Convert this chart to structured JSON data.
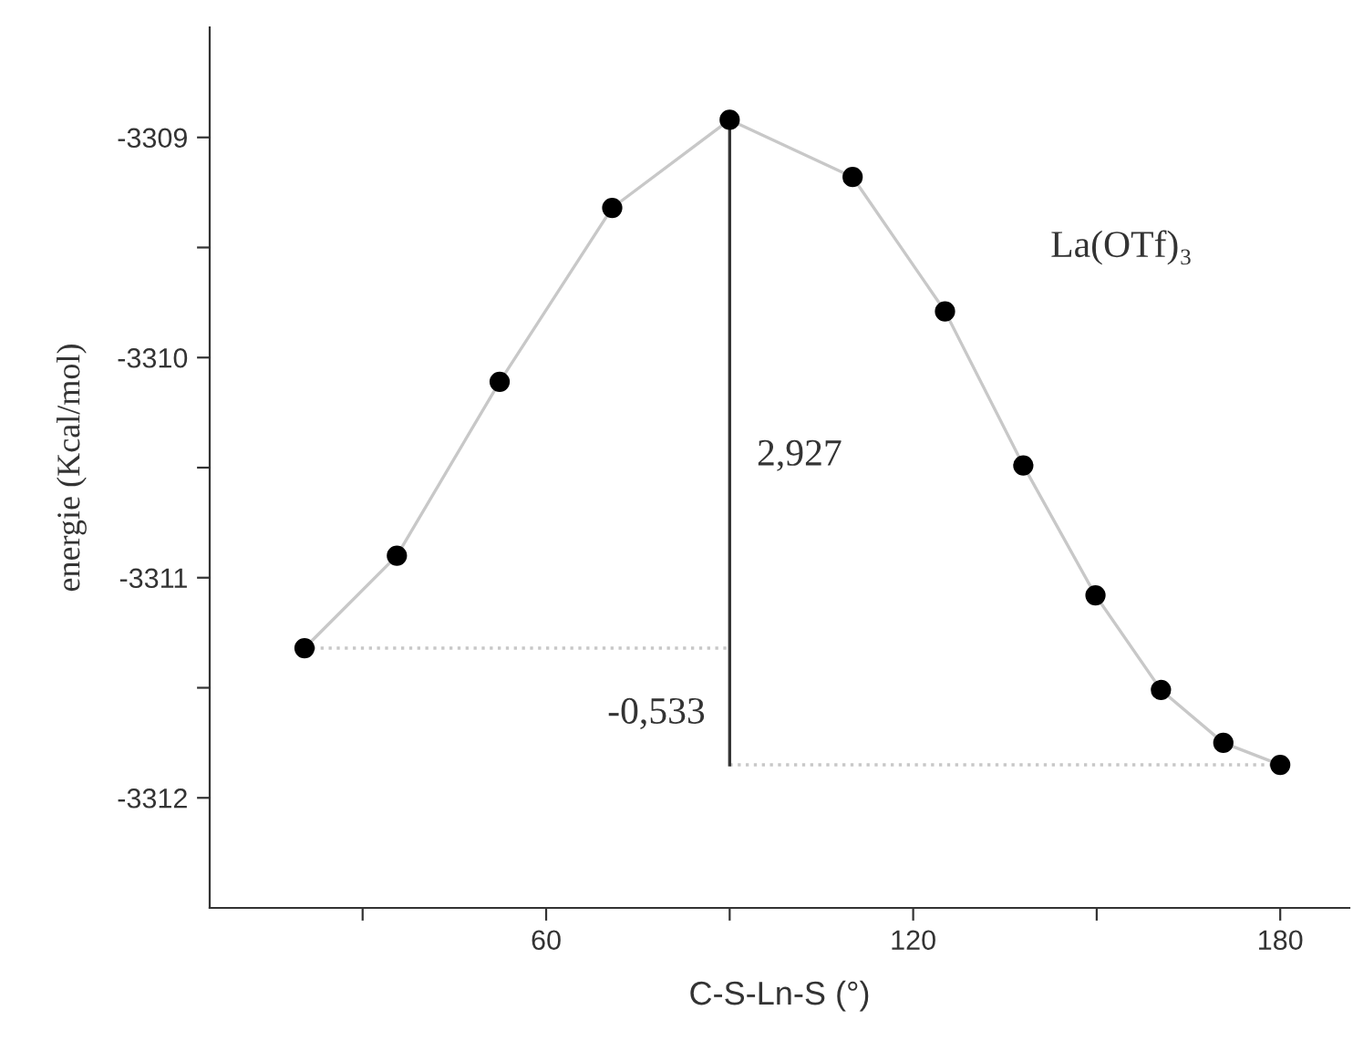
{
  "chart_data": {
    "type": "line",
    "xlabel": "C-S-Ln-S (°)",
    "ylabel": "energie (Kcal/mol)",
    "x": [
      20.5,
      35.6,
      52.4,
      70.8,
      90,
      110.1,
      125.2,
      138,
      149.8,
      160.5,
      170.7,
      180
    ],
    "series": [
      {
        "color": "#c8c8c8",
        "values": [
          -3311.32,
          -3310.9,
          -3310.11,
          -3309.32,
          -3308.92,
          -3309.18,
          -3309.79,
          -3310.49,
          -3311.08,
          -3311.51,
          -3311.75,
          -3311.85
        ],
        "marker": "circle",
        "line_style": "solid"
      },
      {
        "type": "line",
        "color": "#c8c8c8",
        "x": [
          20.5,
          90
        ],
        "values": [
          -3311.32,
          -3311.32
        ],
        "marker": "none",
        "line_style": "dotted"
      },
      {
        "type": "line",
        "color": "#c8c8c8",
        "x": [
          90,
          180
        ],
        "values": [
          -3311.85,
          -3311.85
        ],
        "marker": "none",
        "line_style": "dotted"
      },
      {
        "type": "line",
        "color": "#333333",
        "x": [
          90,
          90
        ],
        "values": [
          -3308.92,
          -3311.85
        ],
        "marker": "none",
        "line_style": "solid"
      }
    ],
    "xlim": [
      5,
      191.3
    ],
    "ylim": [
      -3312.5,
      -3308.5
    ],
    "xticks": [
      {
        "value": 30,
        "label": null
      },
      60,
      {
        "value": 90,
        "label": null
      },
      120,
      {
        "value": 150,
        "label": null
      },
      180
    ],
    "yticks": [
      {
        "value": -3312,
        "label": "-3312"
      },
      {
        "value": -3311.5,
        "label": null
      },
      {
        "value": -3311,
        "label": "-3311"
      },
      {
        "value": -3310.5,
        "label": null
      },
      {
        "value": -3310,
        "label": "-3310"
      },
      {
        "value": -3309.5,
        "label": null
      },
      {
        "value": -3309,
        "label": "-3309"
      }
    ],
    "annotations": [
      "2,927",
      "-0,533",
      "La(OTf)₃"
    ],
    "grid": false,
    "legend": false
  }
}
